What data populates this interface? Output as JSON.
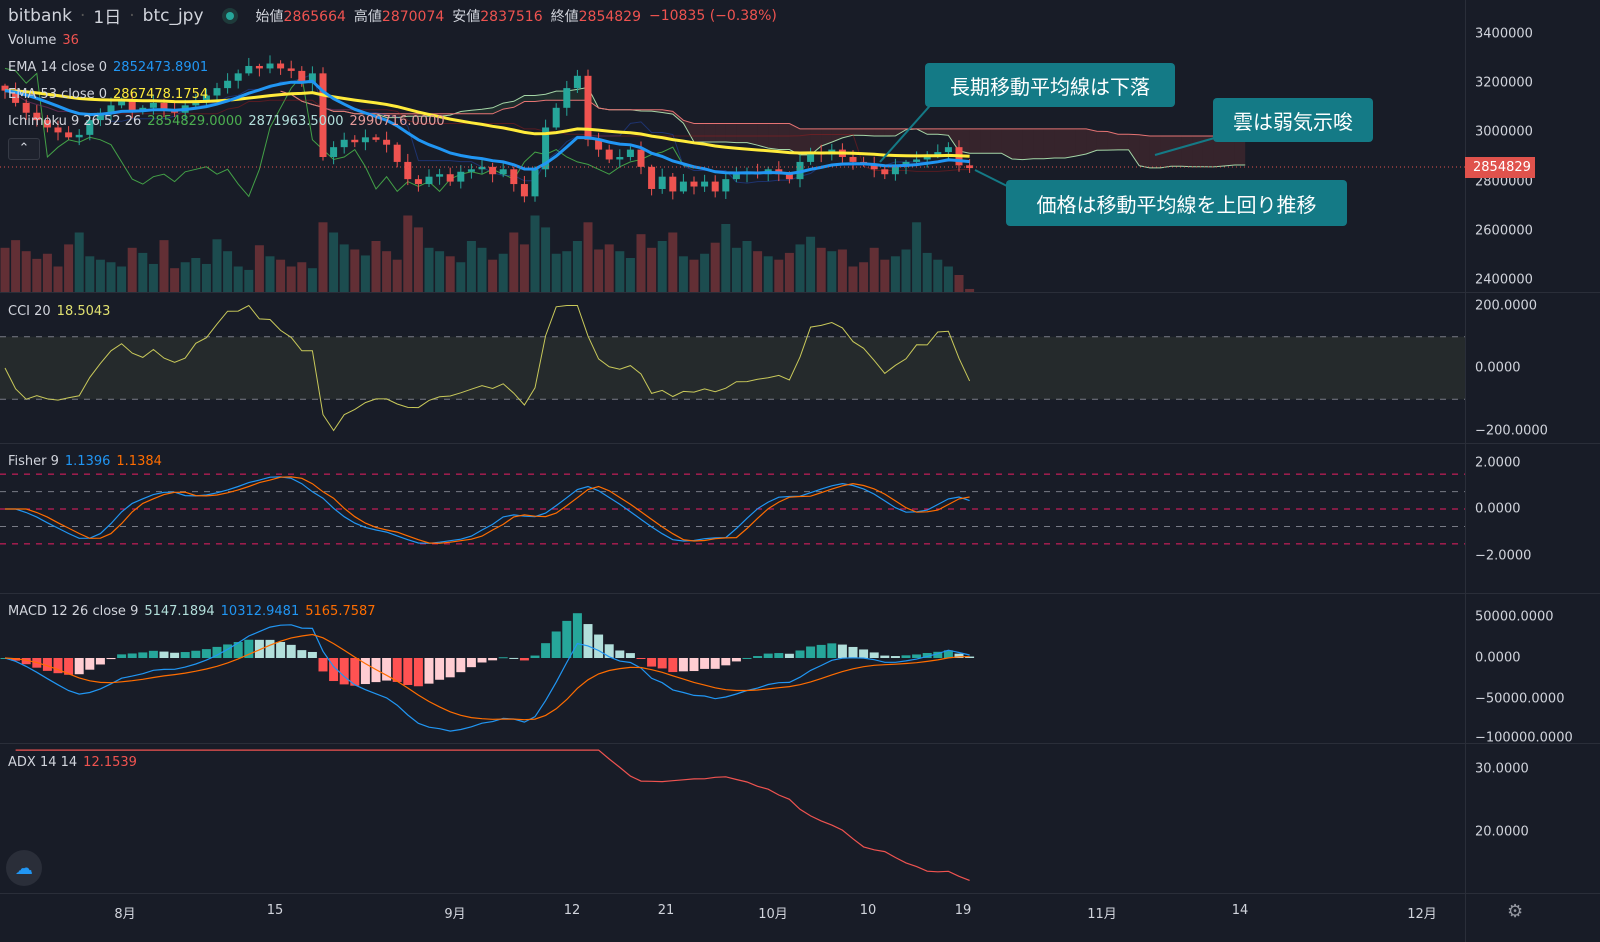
{
  "header": {
    "exchange": "bitbank",
    "interval": "1日",
    "symbol": "btc_jpy",
    "open_label": "始値",
    "open": "2865664",
    "high_label": "高値",
    "high": "2870074",
    "low_label": "安値",
    "low": "2837516",
    "close_label": "終値",
    "close": "2854829",
    "change": "−10835 (−0.38%)"
  },
  "legends": {
    "volume": {
      "name": "Volume",
      "value": "36"
    },
    "ema14": {
      "name": "EMA 14 close 0",
      "value": "2852473.8901"
    },
    "ema53": {
      "name": "EMA 53 close 0",
      "value": "2867478.1754"
    },
    "ichimoku": {
      "name": "Ichimoku 9 26 52 26",
      "v1": "2854829.0000",
      "v2": "2871963.5000",
      "v3": "2990716.0000"
    },
    "cci": {
      "name": "CCI 20",
      "value": "18.5043"
    },
    "fisher": {
      "name": "Fisher 9",
      "v1": "1.1396",
      "v2": "1.1384"
    },
    "macd": {
      "name": "MACD 12 26 close 9",
      "v1": "5147.1894",
      "v2": "10312.9481",
      "v3": "5165.7587"
    },
    "adx": {
      "name": "ADX 14 14",
      "value": "12.1539"
    }
  },
  "annotations": {
    "a1": "長期移動平均線は下落",
    "a2": "雲は弱気示唆",
    "a3": "価格は移動平均線を上回り推移"
  },
  "price_axis": {
    "ticks": [
      "3400000",
      "3200000",
      "3000000",
      "2800000",
      "2600000",
      "2400000"
    ],
    "last_price": "2854829"
  },
  "cci_axis": [
    "200.0000",
    "0.0000",
    "−200.0000"
  ],
  "fisher_axis": [
    "2.0000",
    "0.0000",
    "−2.0000"
  ],
  "macd_axis": [
    "50000.0000",
    "0.0000",
    "−50000.0000",
    "−100000.0000"
  ],
  "adx_axis": [
    "30.0000",
    "20.0000"
  ],
  "time_axis": [
    "8月",
    "15",
    "9月",
    "12",
    "21",
    "10月",
    "10",
    "19",
    "11月",
    "14",
    "12月"
  ],
  "icons": {
    "collapse": "chevron-up-icon",
    "logo": "tradingview-logo-icon",
    "settings": "gear-icon",
    "status": "market-open-dot-icon"
  },
  "colors": {
    "up": "#26a69a",
    "down": "#ef5350",
    "ema14": "#2196f3",
    "ema53": "#ffeb3b",
    "annotation": "#147a86",
    "last_price": "#e0524c"
  },
  "chart_data": {
    "type": "candlestick",
    "close": [
      3170000,
      3120000,
      3080000,
      3050000,
      3020000,
      3000000,
      2980000,
      2990000,
      3050000,
      3080000,
      3110000,
      3130000,
      3090000,
      3100000,
      3120000,
      3090000,
      3080000,
      3110000,
      3130000,
      3150000,
      3180000,
      3210000,
      3240000,
      3270000,
      3260000,
      3280000,
      3260000,
      3250000,
      3200000,
      3240000,
      2900000,
      2940000,
      2970000,
      2960000,
      2980000,
      2970000,
      2950000,
      2880000,
      2810000,
      2790000,
      2820000,
      2830000,
      2800000,
      2840000,
      2850000,
      2860000,
      2830000,
      2850000,
      2790000,
      2740000,
      2850000,
      3020000,
      3100000,
      3180000,
      3230000,
      2970000,
      2930000,
      2890000,
      2900000,
      2930000,
      2860000,
      2770000,
      2820000,
      2760000,
      2800000,
      2780000,
      2800000,
      2760000,
      2810000,
      2830000,
      2840000,
      2830000,
      2850000,
      2830000,
      2810000,
      2880000,
      2920000,
      2910000,
      2930000,
      2900000,
      2880000,
      2870000,
      2850000,
      2830000,
      2860000,
      2880000,
      2890000,
      2910000,
      2920000,
      2940000,
      2866000,
      2855000
    ],
    "volume": [
      520,
      610,
      480,
      390,
      450,
      300,
      560,
      700,
      420,
      380,
      350,
      300,
      520,
      460,
      330,
      610,
      280,
      350,
      400,
      330,
      620,
      480,
      300,
      260,
      550,
      420,
      380,
      300,
      350,
      280,
      820,
      700,
      560,
      500,
      430,
      600,
      480,
      380,
      900,
      760,
      520,
      480,
      420,
      350,
      600,
      520,
      380,
      450,
      700,
      560,
      900,
      760,
      450,
      480,
      600,
      820,
      500,
      560,
      480,
      400,
      680,
      520,
      600,
      700,
      420,
      380,
      450,
      580,
      800,
      520,
      600,
      480,
      420,
      380,
      460,
      560,
      650,
      520,
      480,
      500,
      300,
      350,
      520,
      380,
      420,
      500,
      820,
      460,
      380,
      300,
      200,
      36
    ]
  }
}
